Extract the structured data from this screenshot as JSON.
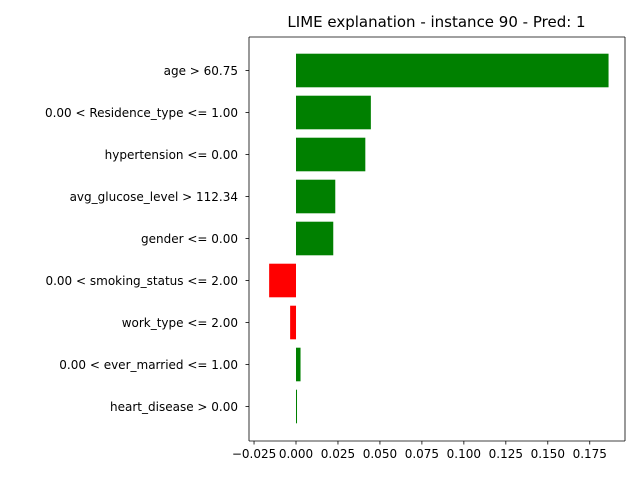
{
  "chart_data": {
    "type": "bar",
    "orientation": "horizontal",
    "title": "LIME explanation - instance 90 - Pred: 1",
    "xlabel": "",
    "ylabel": "",
    "xlim": [
      -0.028,
      0.196
    ],
    "grid": false,
    "legend": "none",
    "positive_color": "#008000",
    "negative_color": "#ff0000",
    "categories": [
      "heart_disease > 0.00",
      "0.00 < ever_married <= 1.00",
      "work_type <= 2.00",
      "0.00 < smoking_status <= 2.00",
      "gender <= 0.00",
      "avg_glucose_level > 112.34",
      "hypertension <= 0.00",
      "0.00 < Residence_type <= 1.00",
      "age > 60.75"
    ],
    "values": [
      0.0006,
      0.0027,
      -0.0035,
      -0.016,
      0.0222,
      0.0234,
      0.0413,
      0.0446,
      0.1862
    ],
    "xticks": [
      -0.025,
      0.0,
      0.025,
      0.05,
      0.075,
      0.1,
      0.125,
      0.15,
      0.175
    ],
    "xtick_labels": [
      "−0.025",
      "0.000",
      "0.025",
      "0.050",
      "0.075",
      "0.100",
      "0.125",
      "0.150",
      "0.175"
    ]
  }
}
